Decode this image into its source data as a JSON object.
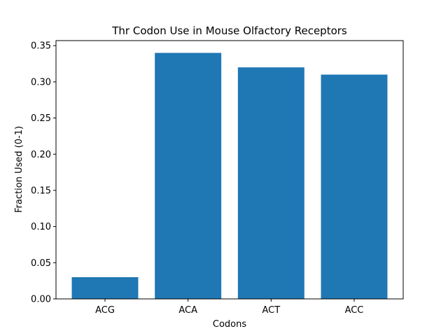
{
  "chart_data": {
    "type": "bar",
    "title": "Thr Codon Use in Mouse Olfactory Receptors",
    "xlabel": "Codons",
    "ylabel": "Fraction Used (0-1)",
    "categories": [
      "ACG",
      "ACA",
      "ACT",
      "ACC"
    ],
    "values": [
      0.03,
      0.34,
      0.32,
      0.31
    ],
    "ylim": [
      0,
      0.357
    ],
    "yticks": [
      "0.00",
      "0.05",
      "0.10",
      "0.15",
      "0.20",
      "0.25",
      "0.30",
      "0.35"
    ],
    "bar_color": "#1f77b4",
    "grid": false,
    "legend": "none"
  }
}
